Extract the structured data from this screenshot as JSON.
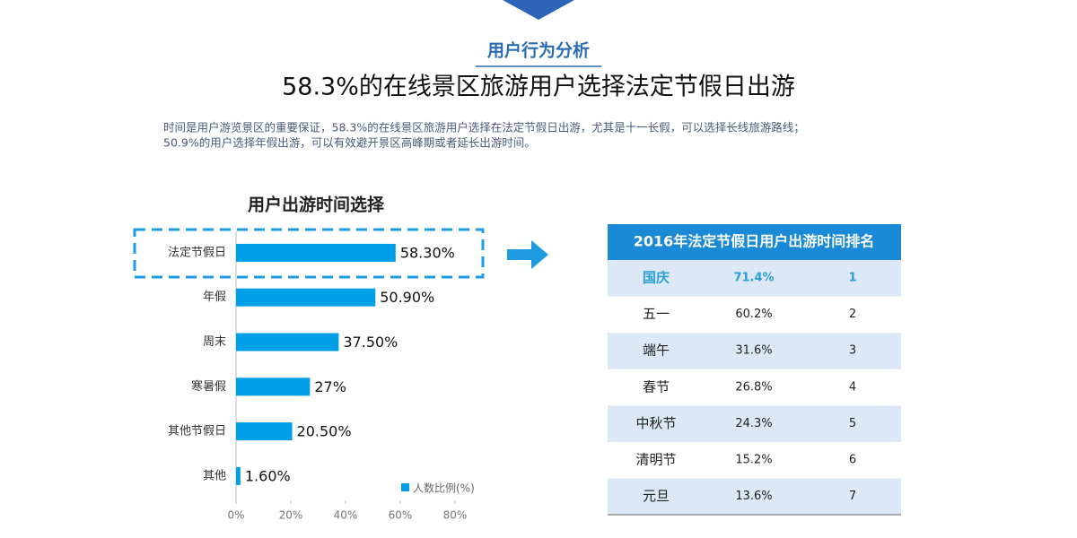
{
  "header": {
    "section": "用户行为分析",
    "title": "58.3%的在线景区旅游用户选择法定节假日出游",
    "description": [
      "时间是用户游览景区的重要保证，58.3%的在线景区旅游用户选择在法定节假日出游，尤其是十一长假，可以选择长线旅游路线；",
      "50.9%的用户选择年假出游，可以有效避开景区高峰期或者延长出游时间。"
    ]
  },
  "chart_data": {
    "type": "barh",
    "title": "用户出游时间选择",
    "categories": [
      "法定节假日",
      "年假",
      "周末",
      "寒暑假",
      "其他节假日",
      "其他"
    ],
    "series": [
      {
        "name": "人数比例(%)",
        "color": "#00a0e9",
        "values": [
          58.3,
          50.9,
          37.5,
          27,
          20.5,
          1.6
        ],
        "value_labels": [
          "58.30%",
          "50.90%",
          "37.50%",
          "27%",
          "20.50%",
          "1.60%"
        ]
      }
    ],
    "xlim": [
      0,
      80
    ],
    "xticks": [
      {
        "value": 0,
        "label": "0%"
      },
      {
        "value": 20,
        "label": "20%"
      },
      {
        "value": 40,
        "label": "40%"
      },
      {
        "value": 60,
        "label": "60%"
      },
      {
        "value": 80,
        "label": "80%"
      }
    ]
  },
  "table": {
    "title": "2016年法定节假日用户出游时间排名",
    "rows": [
      [
        "国庆",
        "71.4%",
        "1"
      ],
      [
        "五一",
        "60.2%",
        "2"
      ],
      [
        "端午",
        "31.6%",
        "3"
      ],
      [
        "春节",
        "26.8%",
        "4"
      ],
      [
        "中秋节",
        "24.3%",
        "5"
      ],
      [
        "清明节",
        "15.2%",
        "6"
      ],
      [
        "元旦",
        "13.6%",
        "7"
      ]
    ]
  }
}
